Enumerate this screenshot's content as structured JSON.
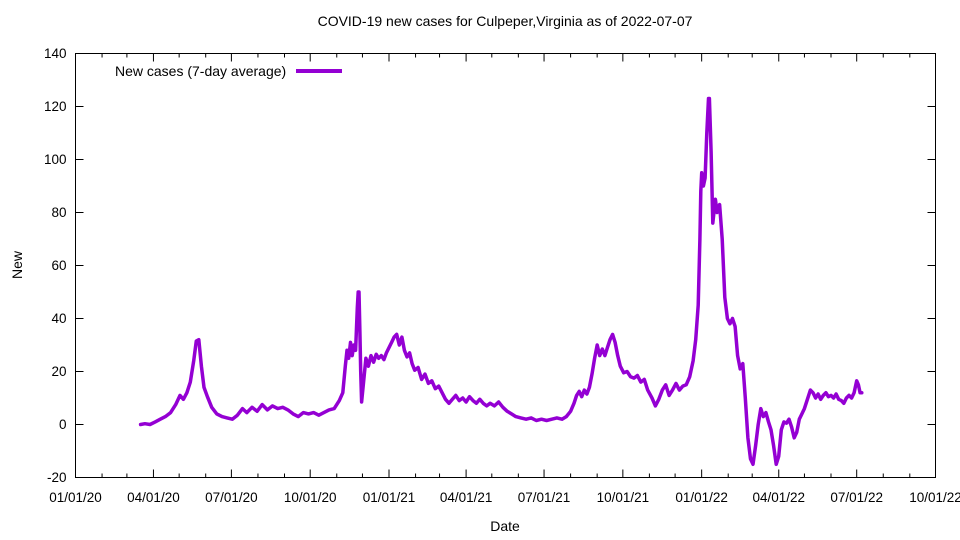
{
  "chart_data": {
    "type": "line",
    "title": "COVID-19 new cases for Culpeper,Virginia as of 2022-07-07",
    "xlabel": "Date",
    "ylabel": "New",
    "legend": {
      "label": "New cases (7-day average)",
      "position": "top-left"
    },
    "line_color": "#9400d3",
    "background": "#ffffff",
    "grid": false,
    "x_range": [
      "2020-01-01",
      "2022-10-01"
    ],
    "y_range": [
      -20,
      140
    ],
    "y_ticks": [
      -20,
      0,
      20,
      40,
      60,
      80,
      100,
      120,
      140
    ],
    "x_ticks": [
      {
        "label": "01/01/20",
        "date": "2020-01-01"
      },
      {
        "label": "04/01/20",
        "date": "2020-04-01"
      },
      {
        "label": "07/01/20",
        "date": "2020-07-01"
      },
      {
        "label": "10/01/20",
        "date": "2020-10-01"
      },
      {
        "label": "01/01/21",
        "date": "2021-01-01"
      },
      {
        "label": "04/01/21",
        "date": "2021-04-01"
      },
      {
        "label": "07/01/21",
        "date": "2021-07-01"
      },
      {
        "label": "10/01/21",
        "date": "2021-10-01"
      },
      {
        "label": "01/01/22",
        "date": "2022-01-01"
      },
      {
        "label": "04/01/22",
        "date": "2022-04-01"
      },
      {
        "label": "07/01/22",
        "date": "2022-07-01"
      },
      {
        "label": "10/01/22",
        "date": "2022-10-01"
      }
    ],
    "series": [
      {
        "name": "New cases (7-day average)",
        "color": "#9400d3",
        "points": [
          [
            "2020-03-17",
            0
          ],
          [
            "2020-03-22",
            0.3
          ],
          [
            "2020-03-28",
            0
          ],
          [
            "2020-04-03",
            1
          ],
          [
            "2020-04-09",
            2
          ],
          [
            "2020-04-15",
            3
          ],
          [
            "2020-04-21",
            4.5
          ],
          [
            "2020-04-27",
            7.5
          ],
          [
            "2020-05-02",
            11
          ],
          [
            "2020-05-06",
            9.5
          ],
          [
            "2020-05-10",
            12
          ],
          [
            "2020-05-14",
            16
          ],
          [
            "2020-05-18",
            24
          ],
          [
            "2020-05-21",
            31.5
          ],
          [
            "2020-05-24",
            32
          ],
          [
            "2020-05-27",
            22
          ],
          [
            "2020-05-30",
            14
          ],
          [
            "2020-06-03",
            10.5
          ],
          [
            "2020-06-08",
            6.5
          ],
          [
            "2020-06-14",
            4
          ],
          [
            "2020-06-20",
            3
          ],
          [
            "2020-06-26",
            2.5
          ],
          [
            "2020-07-02",
            2
          ],
          [
            "2020-07-08",
            3.5
          ],
          [
            "2020-07-14",
            6
          ],
          [
            "2020-07-19",
            4.5
          ],
          [
            "2020-07-25",
            6.5
          ],
          [
            "2020-07-31",
            5
          ],
          [
            "2020-08-06",
            7.5
          ],
          [
            "2020-08-12",
            5.5
          ],
          [
            "2020-08-18",
            7
          ],
          [
            "2020-08-24",
            6
          ],
          [
            "2020-08-30",
            6.5
          ],
          [
            "2020-09-05",
            5.5
          ],
          [
            "2020-09-11",
            4
          ],
          [
            "2020-09-17",
            3
          ],
          [
            "2020-09-23",
            4.5
          ],
          [
            "2020-09-29",
            4
          ],
          [
            "2020-10-05",
            4.5
          ],
          [
            "2020-10-11",
            3.5
          ],
          [
            "2020-10-17",
            4.5
          ],
          [
            "2020-10-23",
            5.5
          ],
          [
            "2020-10-29",
            6
          ],
          [
            "2020-11-04",
            9
          ],
          [
            "2020-11-08",
            12
          ],
          [
            "2020-11-11",
            22
          ],
          [
            "2020-11-13",
            28
          ],
          [
            "2020-11-15",
            25
          ],
          [
            "2020-11-17",
            31
          ],
          [
            "2020-11-19",
            26
          ],
          [
            "2020-11-21",
            30
          ],
          [
            "2020-11-23",
            28
          ],
          [
            "2020-11-25",
            44
          ],
          [
            "2020-11-26",
            50
          ],
          [
            "2020-11-27",
            50
          ],
          [
            "2020-11-28",
            35
          ],
          [
            "2020-11-29",
            20
          ],
          [
            "2020-11-30",
            8.5
          ],
          [
            "2020-12-02",
            15
          ],
          [
            "2020-12-05",
            25
          ],
          [
            "2020-12-08",
            22
          ],
          [
            "2020-12-11",
            26
          ],
          [
            "2020-12-14",
            23.5
          ],
          [
            "2020-12-17",
            26.5
          ],
          [
            "2020-12-20",
            25
          ],
          [
            "2020-12-23",
            26
          ],
          [
            "2020-12-26",
            24.5
          ],
          [
            "2020-12-29",
            27
          ],
          [
            "2021-01-01",
            29
          ],
          [
            "2021-01-04",
            31
          ],
          [
            "2021-01-07",
            33
          ],
          [
            "2021-01-10",
            34
          ],
          [
            "2021-01-13",
            30
          ],
          [
            "2021-01-16",
            33
          ],
          [
            "2021-01-19",
            28
          ],
          [
            "2021-01-22",
            25.5
          ],
          [
            "2021-01-25",
            27
          ],
          [
            "2021-01-28",
            23
          ],
          [
            "2021-01-31",
            20.5
          ],
          [
            "2021-02-04",
            21.5
          ],
          [
            "2021-02-08",
            17
          ],
          [
            "2021-02-12",
            19
          ],
          [
            "2021-02-16",
            15.5
          ],
          [
            "2021-02-20",
            16.5
          ],
          [
            "2021-02-24",
            13.5
          ],
          [
            "2021-02-28",
            14.5
          ],
          [
            "2021-03-04",
            12
          ],
          [
            "2021-03-08",
            9.5
          ],
          [
            "2021-03-12",
            8
          ],
          [
            "2021-03-16",
            9.5
          ],
          [
            "2021-03-20",
            11
          ],
          [
            "2021-03-24",
            9
          ],
          [
            "2021-03-28",
            10
          ],
          [
            "2021-04-01",
            8.5
          ],
          [
            "2021-04-05",
            10.5
          ],
          [
            "2021-04-09",
            9
          ],
          [
            "2021-04-13",
            8
          ],
          [
            "2021-04-17",
            9.5
          ],
          [
            "2021-04-21",
            8
          ],
          [
            "2021-04-25",
            7
          ],
          [
            "2021-04-29",
            8
          ],
          [
            "2021-05-04",
            7
          ],
          [
            "2021-05-09",
            8.5
          ],
          [
            "2021-05-14",
            6.5
          ],
          [
            "2021-05-19",
            5
          ],
          [
            "2021-05-24",
            4
          ],
          [
            "2021-05-29",
            3
          ],
          [
            "2021-06-04",
            2.5
          ],
          [
            "2021-06-10",
            2
          ],
          [
            "2021-06-16",
            2.5
          ],
          [
            "2021-06-22",
            1.5
          ],
          [
            "2021-06-28",
            2
          ],
          [
            "2021-07-04",
            1.5
          ],
          [
            "2021-07-10",
            2
          ],
          [
            "2021-07-16",
            2.5
          ],
          [
            "2021-07-22",
            2
          ],
          [
            "2021-07-27",
            3
          ],
          [
            "2021-08-01",
            5
          ],
          [
            "2021-08-05",
            8
          ],
          [
            "2021-08-08",
            11
          ],
          [
            "2021-08-11",
            12.5
          ],
          [
            "2021-08-14",
            10.5
          ],
          [
            "2021-08-17",
            13
          ],
          [
            "2021-08-20",
            11.5
          ],
          [
            "2021-08-23",
            14
          ],
          [
            "2021-08-26",
            19
          ],
          [
            "2021-08-29",
            25
          ],
          [
            "2021-09-01",
            30
          ],
          [
            "2021-09-04",
            26
          ],
          [
            "2021-09-07",
            28.5
          ],
          [
            "2021-09-10",
            26
          ],
          [
            "2021-09-13",
            29
          ],
          [
            "2021-09-16",
            32
          ],
          [
            "2021-09-19",
            34
          ],
          [
            "2021-09-22",
            31
          ],
          [
            "2021-09-25",
            26
          ],
          [
            "2021-09-28",
            22
          ],
          [
            "2021-10-02",
            19.5
          ],
          [
            "2021-10-06",
            20
          ],
          [
            "2021-10-10",
            18
          ],
          [
            "2021-10-14",
            17.5
          ],
          [
            "2021-10-18",
            18.5
          ],
          [
            "2021-10-22",
            16
          ],
          [
            "2021-10-26",
            17
          ],
          [
            "2021-10-30",
            13
          ],
          [
            "2021-11-04",
            10
          ],
          [
            "2021-11-08",
            7
          ],
          [
            "2021-11-12",
            9.5
          ],
          [
            "2021-11-16",
            13
          ],
          [
            "2021-11-20",
            15
          ],
          [
            "2021-11-24",
            11
          ],
          [
            "2021-11-28",
            13
          ],
          [
            "2021-12-02",
            15.5
          ],
          [
            "2021-12-06",
            13
          ],
          [
            "2021-12-10",
            14.5
          ],
          [
            "2021-12-14",
            15
          ],
          [
            "2021-12-18",
            18
          ],
          [
            "2021-12-22",
            24
          ],
          [
            "2021-12-25",
            32
          ],
          [
            "2021-12-28",
            45
          ],
          [
            "2021-12-30",
            70
          ],
          [
            "2021-12-31",
            88
          ],
          [
            "2022-01-01",
            95
          ],
          [
            "2022-01-03",
            90
          ],
          [
            "2022-01-05",
            93
          ],
          [
            "2022-01-07",
            110
          ],
          [
            "2022-01-09",
            123
          ],
          [
            "2022-01-10",
            123
          ],
          [
            "2022-01-12",
            103
          ],
          [
            "2022-01-14",
            76
          ],
          [
            "2022-01-17",
            85
          ],
          [
            "2022-01-19",
            80
          ],
          [
            "2022-01-22",
            83
          ],
          [
            "2022-01-25",
            70
          ],
          [
            "2022-01-28",
            48
          ],
          [
            "2022-01-31",
            40
          ],
          [
            "2022-02-03",
            38
          ],
          [
            "2022-02-06",
            40
          ],
          [
            "2022-02-09",
            37
          ],
          [
            "2022-02-12",
            26
          ],
          [
            "2022-02-15",
            21
          ],
          [
            "2022-02-18",
            23
          ],
          [
            "2022-02-21",
            10
          ],
          [
            "2022-02-24",
            -5
          ],
          [
            "2022-02-27",
            -13
          ],
          [
            "2022-03-02",
            -15
          ],
          [
            "2022-03-05",
            -8
          ],
          [
            "2022-03-08",
            0
          ],
          [
            "2022-03-11",
            6
          ],
          [
            "2022-03-14",
            3
          ],
          [
            "2022-03-17",
            4.5
          ],
          [
            "2022-03-20",
            1
          ],
          [
            "2022-03-23",
            -2
          ],
          [
            "2022-03-26",
            -8
          ],
          [
            "2022-03-29",
            -15
          ],
          [
            "2022-04-01",
            -12
          ],
          [
            "2022-04-04",
            -2
          ],
          [
            "2022-04-07",
            1
          ],
          [
            "2022-04-10",
            0.5
          ],
          [
            "2022-04-13",
            2
          ],
          [
            "2022-04-16",
            -1
          ],
          [
            "2022-04-19",
            -5
          ],
          [
            "2022-04-22",
            -3
          ],
          [
            "2022-04-25",
            2
          ],
          [
            "2022-04-28",
            4
          ],
          [
            "2022-05-01",
            6
          ],
          [
            "2022-05-04",
            9
          ],
          [
            "2022-05-08",
            13
          ],
          [
            "2022-05-11",
            12
          ],
          [
            "2022-05-14",
            10
          ],
          [
            "2022-05-17",
            11.5
          ],
          [
            "2022-05-20",
            9.5
          ],
          [
            "2022-05-23",
            11
          ],
          [
            "2022-05-26",
            12
          ],
          [
            "2022-05-29",
            10.5
          ],
          [
            "2022-06-01",
            11
          ],
          [
            "2022-06-04",
            10
          ],
          [
            "2022-06-07",
            11.5
          ],
          [
            "2022-06-10",
            9.5
          ],
          [
            "2022-06-13",
            9
          ],
          [
            "2022-06-16",
            8
          ],
          [
            "2022-06-19",
            10
          ],
          [
            "2022-06-22",
            11
          ],
          [
            "2022-06-25",
            10
          ],
          [
            "2022-06-28",
            12
          ],
          [
            "2022-07-01",
            16.5
          ],
          [
            "2022-07-03",
            15
          ],
          [
            "2022-07-05",
            12
          ],
          [
            "2022-07-07",
            12
          ]
        ]
      }
    ]
  }
}
